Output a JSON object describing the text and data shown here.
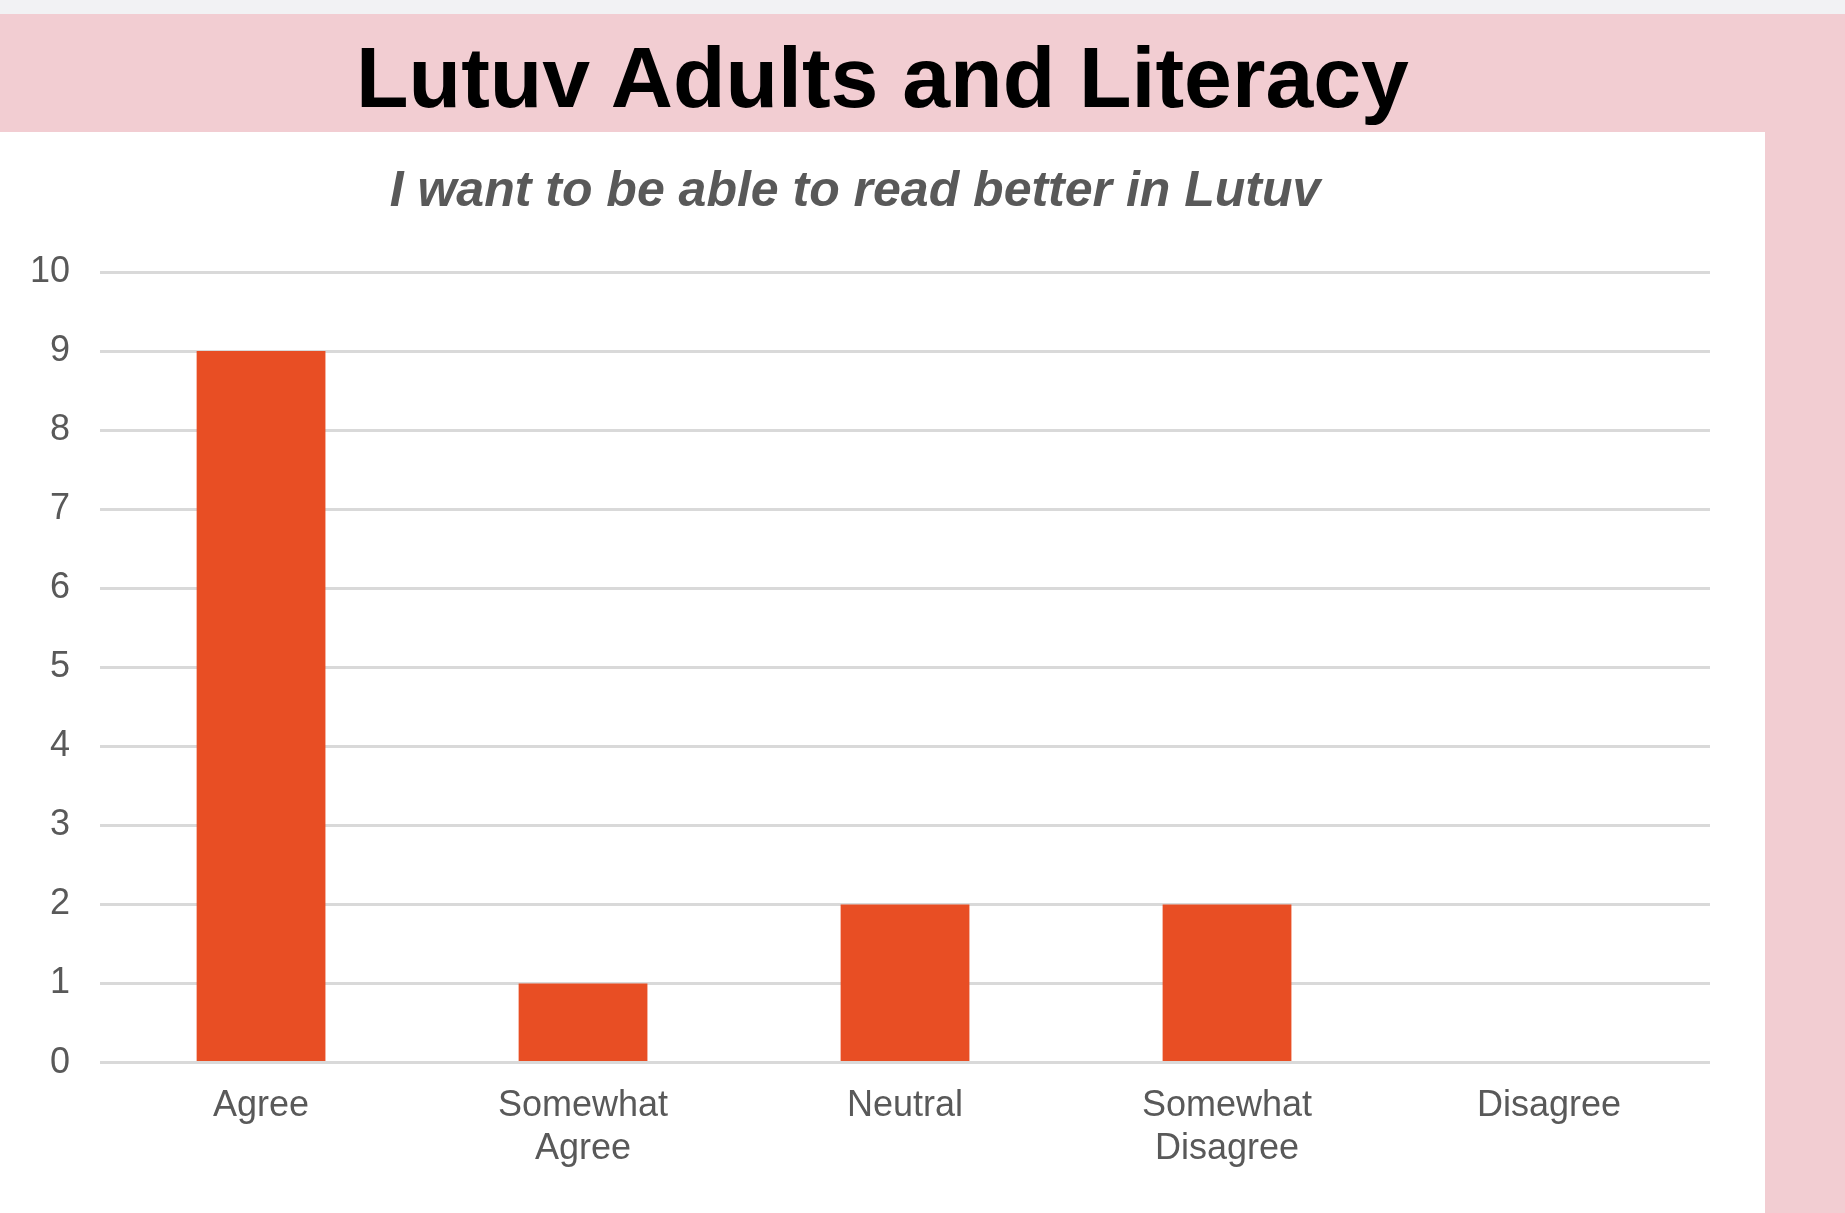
{
  "chart_data": {
    "type": "bar",
    "title": "Lutuv Adults and Literacy",
    "subtitle": "I want to be able to read better in Lutuv",
    "categories": [
      "Agree",
      "Somewhat Agree",
      "Neutral",
      "Somewhat Disagree",
      "Disagree"
    ],
    "values": [
      9,
      1,
      2,
      2,
      0
    ],
    "color": "#e84e24",
    "ylim": [
      0,
      10
    ],
    "yticks": [
      0,
      1,
      2,
      3,
      4,
      5,
      6,
      7,
      8,
      9,
      10
    ],
    "grid": "y",
    "legend": false
  }
}
